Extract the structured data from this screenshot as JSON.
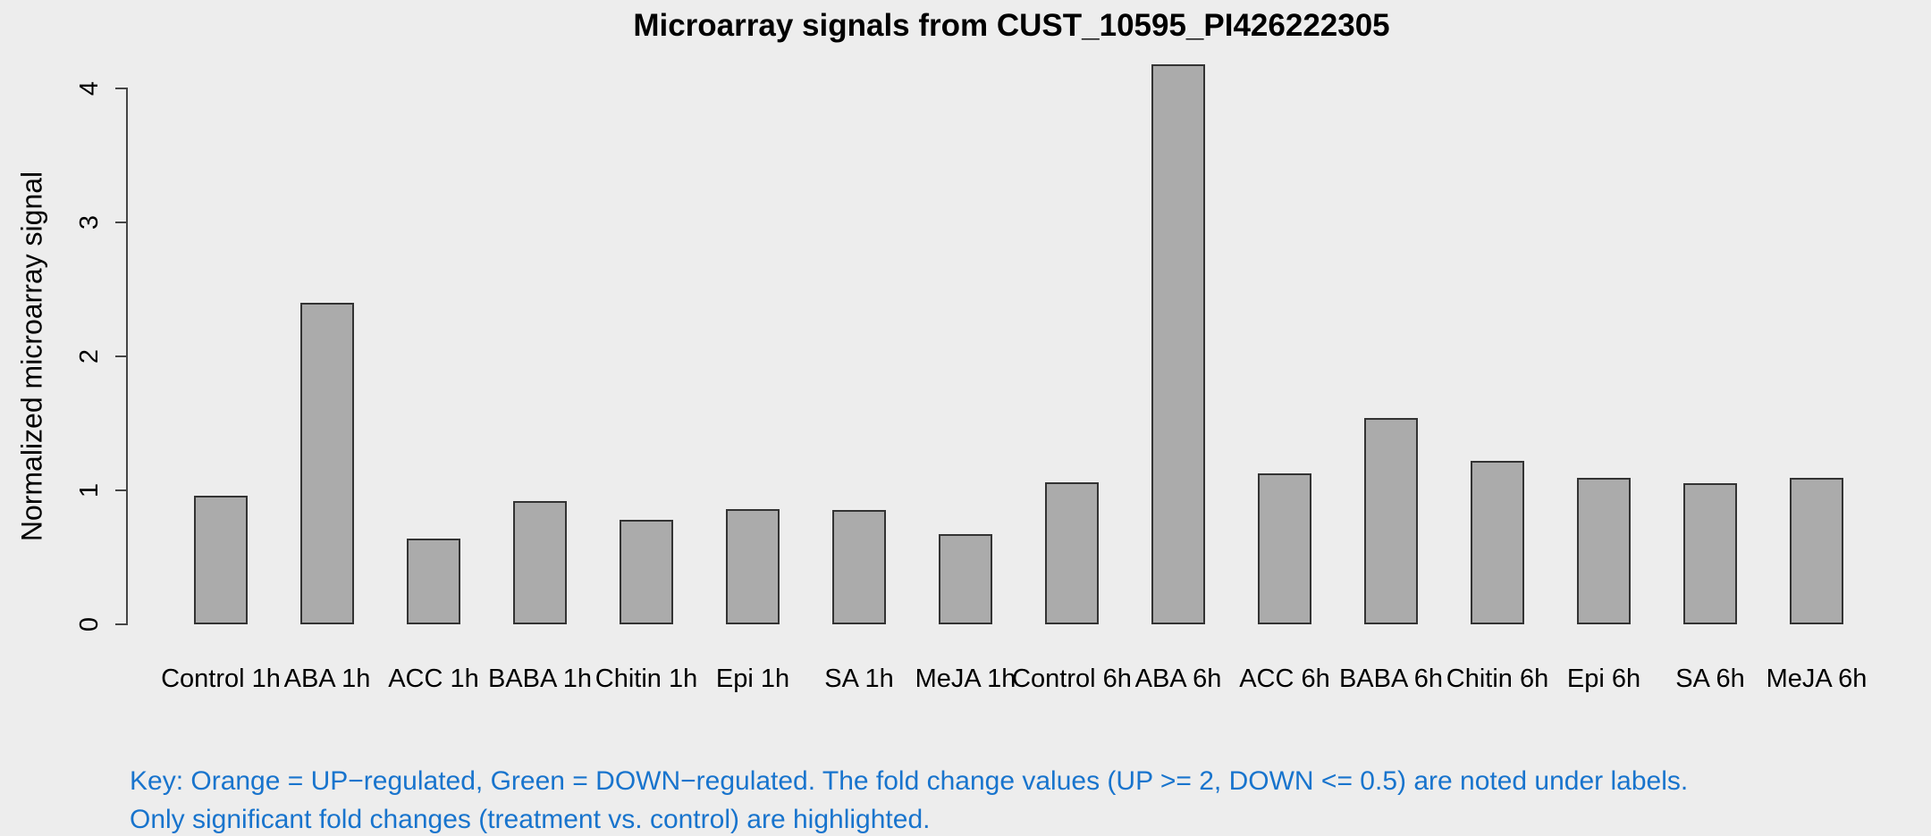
{
  "page": {
    "background": "#EDEDED"
  },
  "chart_data": {
    "type": "bar",
    "title": "Microarray signals from CUST_10595_PI426222305",
    "xlabel": "",
    "ylabel": "Normalized microarray signal",
    "categories": [
      "Control 1h",
      "ABA 1h",
      "ACC 1h",
      "BABA 1h",
      "Chitin 1h",
      "Epi 1h",
      "SA 1h",
      "MeJA 1h",
      "Control 6h",
      "ABA 6h",
      "ACC 6h",
      "BABA 6h",
      "Chitin 6h",
      "Epi 6h",
      "SA 6h",
      "MeJA 6h"
    ],
    "values": [
      0.96,
      2.4,
      0.64,
      0.92,
      0.78,
      0.86,
      0.85,
      0.67,
      1.06,
      4.18,
      1.13,
      1.54,
      1.22,
      1.09,
      1.05,
      1.09
    ],
    "yticks": [
      0,
      1,
      2,
      3,
      4
    ],
    "ylim": [
      0,
      4.2
    ],
    "grid": false,
    "legend": "none",
    "bar_fill": "#ABABAB",
    "bar_border": "#333333",
    "background": "#EDEDED"
  },
  "footer": {
    "key_line1": "Key: Orange = UP−regulated, Green = DOWN−regulated. The fold change values (UP >= 2, DOWN <= 0.5) are noted under labels.",
    "key_line2": "Only significant fold changes (treatment vs. control) are highlighted.",
    "color": "#1874CD"
  }
}
